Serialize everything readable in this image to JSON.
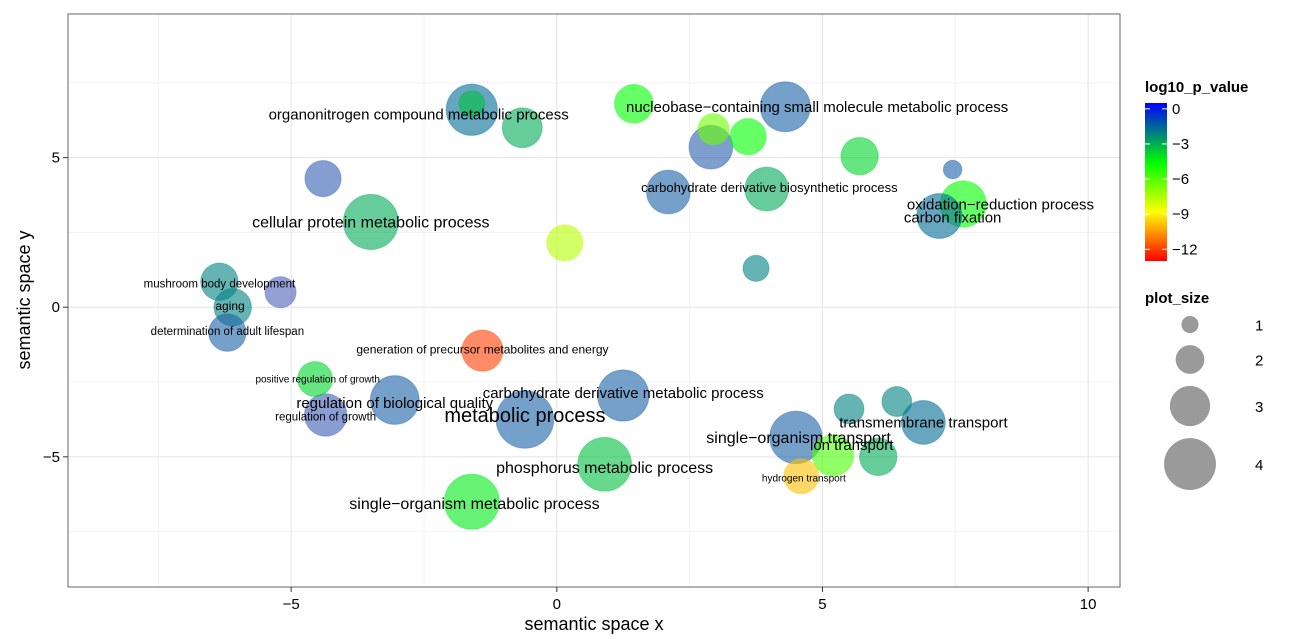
{
  "chart_data": {
    "type": "scatter",
    "xlabel": "semantic space x",
    "ylabel": "semantic space y",
    "xlim": [
      -9.2,
      10.6
    ],
    "ylim": [
      -9.35,
      9.8
    ],
    "x_ticks": [
      -5,
      0,
      5,
      10
    ],
    "x_tick_labels": [
      "−5",
      "0",
      "5",
      "10"
    ],
    "y_ticks": [
      -5,
      0,
      5
    ],
    "y_tick_labels": [
      "−5",
      "0",
      "5"
    ],
    "grid": true,
    "legend_color": {
      "title": "log10_p_value",
      "ticks": [
        0,
        -3,
        -6,
        -9,
        -12
      ],
      "tick_labels": [
        "0",
        "−3",
        "−6",
        "−9",
        "−12"
      ],
      "range": [
        -13,
        0.5
      ],
      "colors": [
        "#ff0000",
        "#ffff00",
        "#00ff00",
        "#0000ff"
      ]
    },
    "legend_size": {
      "title": "plot_size",
      "values": [
        1,
        2,
        3,
        4
      ],
      "labels": [
        "1",
        "2",
        "3",
        "4"
      ]
    },
    "points": [
      {
        "x": -1.6,
        "y": 6.6,
        "size": 3.6,
        "p": -2.0
      },
      {
        "x": -1.6,
        "y": 6.8,
        "size": 1.6,
        "p": -4.0
      },
      {
        "x": -0.65,
        "y": 6.0,
        "size": 2.7,
        "p": -3.5
      },
      {
        "x": 1.45,
        "y": 6.8,
        "size": 2.6,
        "p": -5.5
      },
      {
        "x": 4.3,
        "y": 6.7,
        "size": 3.5,
        "p": -1.5
      },
      {
        "x": 2.95,
        "y": 5.95,
        "size": 2.0,
        "p": -7.0
      },
      {
        "x": 2.9,
        "y": 5.35,
        "size": 3.0,
        "p": -1.2
      },
      {
        "x": 3.6,
        "y": 5.7,
        "size": 2.4,
        "p": -5.5
      },
      {
        "x": 5.7,
        "y": 5.05,
        "size": 2.5,
        "p": -4.5
      },
      {
        "x": 7.45,
        "y": 4.6,
        "size": 1.0,
        "p": -1.5
      },
      {
        "x": -4.4,
        "y": 4.3,
        "size": 2.4,
        "p": -1.0
      },
      {
        "x": 2.1,
        "y": 3.85,
        "size": 3.0,
        "p": -1.5
      },
      {
        "x": 3.95,
        "y": 3.95,
        "size": 3.0,
        "p": -3.5
      },
      {
        "x": 7.2,
        "y": 3.05,
        "size": 3.1,
        "p": -2.0
      },
      {
        "x": 7.65,
        "y": 3.45,
        "size": 3.2,
        "p": -5.5
      },
      {
        "x": -3.5,
        "y": 2.85,
        "size": 3.9,
        "p": -3.5
      },
      {
        "x": 0.15,
        "y": 2.15,
        "size": 2.4,
        "p": -8.0
      },
      {
        "x": 3.75,
        "y": 1.3,
        "size": 1.6,
        "p": -2.5
      },
      {
        "x": -6.35,
        "y": 0.85,
        "size": 2.5,
        "p": -2.5
      },
      {
        "x": -5.2,
        "y": 0.5,
        "size": 2.0,
        "p": -0.5
      },
      {
        "x": -6.1,
        "y": 0.0,
        "size": 2.5,
        "p": -2.5
      },
      {
        "x": -6.2,
        "y": -0.85,
        "size": 2.5,
        "p": -1.5
      },
      {
        "x": -1.4,
        "y": -1.45,
        "size": 2.8,
        "p": -12.0
      },
      {
        "x": -4.55,
        "y": -2.4,
        "size": 2.3,
        "p": -4.5
      },
      {
        "x": -3.05,
        "y": -3.1,
        "size": 3.4,
        "p": -1.5
      },
      {
        "x": 1.25,
        "y": -2.95,
        "size": 3.6,
        "p": -1.5
      },
      {
        "x": -4.35,
        "y": -3.6,
        "size": 2.9,
        "p": -0.8
      },
      {
        "x": -0.6,
        "y": -3.75,
        "size": 4.1,
        "p": -1.5
      },
      {
        "x": 5.5,
        "y": -3.4,
        "size": 1.9,
        "p": -2.5
      },
      {
        "x": 6.4,
        "y": -3.15,
        "size": 1.9,
        "p": -2.5
      },
      {
        "x": 6.9,
        "y": -3.85,
        "size": 3.0,
        "p": -2.0
      },
      {
        "x": 4.5,
        "y": -4.35,
        "size": 3.7,
        "p": -1.5
      },
      {
        "x": 5.2,
        "y": -4.95,
        "size": 2.8,
        "p": -6.5
      },
      {
        "x": 6.05,
        "y": -5.0,
        "size": 2.5,
        "p": -3.5
      },
      {
        "x": 0.9,
        "y": -5.25,
        "size": 3.8,
        "p": -4.0
      },
      {
        "x": 4.6,
        "y": -5.65,
        "size": 2.3,
        "p": -10.0
      },
      {
        "x": -1.6,
        "y": -6.5,
        "size": 3.9,
        "p": -5.0
      }
    ],
    "labels": [
      {
        "text": "organonitrogen compound metabolic process",
        "x": -2.6,
        "y": 6.45,
        "size": 15
      },
      {
        "text": "nucleobase−containing small molecule metabolic process",
        "x": 4.9,
        "y": 6.7,
        "size": 15
      },
      {
        "text": "carbohydrate derivative biosynthetic process",
        "x": 4.0,
        "y": 4.0,
        "size": 13
      },
      {
        "text": "oxidation−reduction process",
        "x": 8.35,
        "y": 3.45,
        "size": 15
      },
      {
        "text": "carbon fixation",
        "x": 7.45,
        "y": 3.0,
        "size": 15
      },
      {
        "text": "cellular protein metabolic process",
        "x": -3.5,
        "y": 2.85,
        "size": 16
      },
      {
        "text": "mushroom body development",
        "x": -6.35,
        "y": 0.8,
        "size": 11.5
      },
      {
        "text": "aging",
        "x": -6.15,
        "y": 0.05,
        "size": 12
      },
      {
        "text": "determination of adult lifespan",
        "x": -6.2,
        "y": -0.8,
        "size": 11.5
      },
      {
        "text": "generation of precursor metabolites and energy",
        "x": -1.4,
        "y": -1.4,
        "size": 12
      },
      {
        "text": "positive regulation of growth",
        "x": -4.5,
        "y": -2.4,
        "size": 10
      },
      {
        "text": "carbohydrate derivative metabolic process",
        "x": 1.25,
        "y": -2.85,
        "size": 15
      },
      {
        "text": "regulation of biological quality",
        "x": -3.05,
        "y": -3.2,
        "size": 15
      },
      {
        "text": "regulation of growth",
        "x": -4.35,
        "y": -3.65,
        "size": 11.5
      },
      {
        "text": "metabolic process",
        "x": -0.6,
        "y": -3.6,
        "size": 20
      },
      {
        "text": "transmembrane transport",
        "x": 6.9,
        "y": -3.85,
        "size": 15
      },
      {
        "text": "single−organism transport",
        "x": 4.55,
        "y": -4.35,
        "size": 16
      },
      {
        "text": "ion transport",
        "x": 5.55,
        "y": -4.6,
        "size": 15
      },
      {
        "text": "phosphorus metabolic process",
        "x": 0.9,
        "y": -5.35,
        "size": 16
      },
      {
        "text": "hydrogen transport",
        "x": 4.65,
        "y": -5.7,
        "size": 10
      },
      {
        "text": "single−organism metabolic process",
        "x": -1.55,
        "y": -6.55,
        "size": 16
      }
    ]
  }
}
